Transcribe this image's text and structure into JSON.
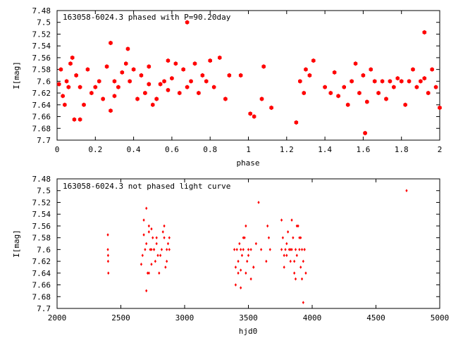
{
  "chart_data": [
    {
      "type": "scatter",
      "title": "163058-6024.3 phased with P=90.20day",
      "xlabel": "phase",
      "ylabel": "I[mag]",
      "xlim": [
        0,
        2
      ],
      "ylim": [
        7.7,
        7.48
      ],
      "y_inverted": true,
      "grid": false,
      "marker": "filled-hexagon",
      "color": "#ff0000",
      "x_ticks": [
        "0",
        "0.2",
        "0.4",
        "0.6",
        "0.8",
        "1",
        "1.2",
        "1.4",
        "1.6",
        "1.8",
        "2"
      ],
      "y_ticks": [
        "7.48",
        "7.5",
        "7.52",
        "7.54",
        "7.56",
        "7.58",
        "7.6",
        "7.62",
        "7.64",
        "7.66",
        "7.68",
        "7.7"
      ],
      "x": [
        0.01,
        0.02,
        0.03,
        0.04,
        0.05,
        0.06,
        0.07,
        0.08,
        0.09,
        0.1,
        0.12,
        0.14,
        0.16,
        0.18,
        0.2,
        0.22,
        0.24,
        0.26,
        0.28,
        0.3,
        0.32,
        0.34,
        0.36,
        0.37,
        0.38,
        0.4,
        0.42,
        0.44,
        0.46,
        0.48,
        0.5,
        0.52,
        0.54,
        0.56,
        0.58,
        0.6,
        0.62,
        0.64,
        0.66,
        0.68,
        0.7,
        0.72,
        0.74,
        0.76,
        0.78,
        0.8,
        0.82,
        0.85,
        0.88,
        0.9,
        1.01,
        1.03,
        1.07,
        1.08,
        1.12,
        1.25,
        1.27,
        1.29,
        1.3,
        1.32,
        1.34,
        1.4,
        1.43,
        1.45,
        1.47,
        1.5,
        1.52,
        1.54,
        1.56,
        1.58,
        1.6,
        1.62,
        1.64,
        1.66,
        1.68,
        1.7,
        1.72,
        1.74,
        1.76,
        1.78,
        1.8,
        1.82,
        1.84,
        1.86,
        1.88,
        1.9,
        1.92,
        1.94,
        1.96,
        1.98,
        2.0,
        0.12,
        0.3,
        0.58,
        0.68,
        1.61,
        1.92,
        0.96,
        0.28,
        0.48
      ],
      "y": [
        7.605,
        7.58,
        7.625,
        7.64,
        7.6,
        7.61,
        7.57,
        7.56,
        7.665,
        7.59,
        7.61,
        7.64,
        7.58,
        7.62,
        7.61,
        7.6,
        7.63,
        7.575,
        7.65,
        7.6,
        7.61,
        7.585,
        7.57,
        7.545,
        7.6,
        7.58,
        7.63,
        7.59,
        7.62,
        7.605,
        7.64,
        7.63,
        7.605,
        7.6,
        7.615,
        7.595,
        7.57,
        7.62,
        7.58,
        7.61,
        7.6,
        7.57,
        7.62,
        7.59,
        7.6,
        7.565,
        7.61,
        7.56,
        7.63,
        7.59,
        7.655,
        7.66,
        7.63,
        7.575,
        7.645,
        7.67,
        7.6,
        7.62,
        7.58,
        7.59,
        7.565,
        7.61,
        7.62,
        7.585,
        7.625,
        7.61,
        7.64,
        7.6,
        7.57,
        7.62,
        7.59,
        7.635,
        7.58,
        7.6,
        7.62,
        7.6,
        7.63,
        7.6,
        7.61,
        7.595,
        7.6,
        7.64,
        7.6,
        7.58,
        7.61,
        7.6,
        7.595,
        7.62,
        7.58,
        7.61,
        7.645,
        7.665,
        7.625,
        7.565,
        7.5,
        7.688,
        7.517,
        7.59,
        7.535,
        7.575
      ]
    },
    {
      "type": "scatter",
      "title": "163058-6024.3 not phased light curve",
      "xlabel": "hjd0",
      "ylabel": "I[mag]",
      "xlim": [
        2000,
        5000
      ],
      "ylim": [
        7.7,
        7.48
      ],
      "y_inverted": true,
      "grid": false,
      "marker": "small-diamond",
      "color": "#ff0000",
      "x_ticks": [
        "2000",
        "2500",
        "3000",
        "3500",
        "4000",
        "4500",
        "5000"
      ],
      "y_ticks": [
        "7.48",
        "7.5",
        "7.52",
        "7.54",
        "7.56",
        "7.58",
        "7.6",
        "7.62",
        "7.64",
        "7.66",
        "7.68",
        "7.7"
      ],
      "x": [
        2398,
        2400,
        2402,
        2398,
        2400,
        2660,
        2670,
        2680,
        2690,
        2700,
        2710,
        2720,
        2730,
        2740,
        2750,
        2760,
        2770,
        2780,
        2790,
        2680,
        2700,
        2720,
        2740,
        2760,
        2780,
        2800,
        2820,
        2840,
        2860,
        2880,
        2700,
        2720,
        2740,
        2810,
        2840,
        2860,
        2880,
        2850,
        2870,
        2830,
        3390,
        3400,
        3410,
        3420,
        3430,
        3440,
        3450,
        3460,
        3470,
        3480,
        3490,
        3500,
        3520,
        3540,
        3400,
        3420,
        3440,
        3460,
        3480,
        3500,
        3520,
        3540,
        3560,
        3580,
        3600,
        3640,
        3650,
        3660,
        3670,
        3440,
        3760,
        3770,
        3780,
        3790,
        3800,
        3810,
        3820,
        3830,
        3840,
        3850,
        3860,
        3870,
        3880,
        3890,
        3900,
        3910,
        3920,
        3930,
        3940,
        3950,
        3760,
        3800,
        3840,
        3880,
        3920,
        3940,
        3860,
        3900,
        3780,
        3830,
        3870,
        3910,
        3930,
        4740
      ],
      "y": [
        7.6,
        7.62,
        7.64,
        7.575,
        7.61,
        7.625,
        7.61,
        7.575,
        7.6,
        7.59,
        7.64,
        7.57,
        7.6,
        7.625,
        7.58,
        7.6,
        7.62,
        7.58,
        7.61,
        7.55,
        7.53,
        7.56,
        7.565,
        7.6,
        7.59,
        7.64,
        7.6,
        7.58,
        7.62,
        7.6,
        7.67,
        7.64,
        7.6,
        7.61,
        7.56,
        7.6,
        7.58,
        7.63,
        7.59,
        7.57,
        7.6,
        7.63,
        7.6,
        7.62,
        7.59,
        7.635,
        7.61,
        7.6,
        7.58,
        7.64,
        7.62,
        7.6,
        7.65,
        7.63,
        7.66,
        7.64,
        7.6,
        7.58,
        7.56,
        7.61,
        7.6,
        7.63,
        7.59,
        7.52,
        7.6,
        7.62,
        7.56,
        7.58,
        7.6,
        7.665,
        7.6,
        7.58,
        7.61,
        7.6,
        7.59,
        7.57,
        7.6,
        7.62,
        7.6,
        7.58,
        7.64,
        7.6,
        7.61,
        7.56,
        7.6,
        7.63,
        7.6,
        7.62,
        7.6,
        7.64,
        7.55,
        7.61,
        7.55,
        7.56,
        7.65,
        7.6,
        7.62,
        7.58,
        7.63,
        7.6,
        7.65,
        7.58,
        7.69,
        7.5
      ]
    }
  ]
}
